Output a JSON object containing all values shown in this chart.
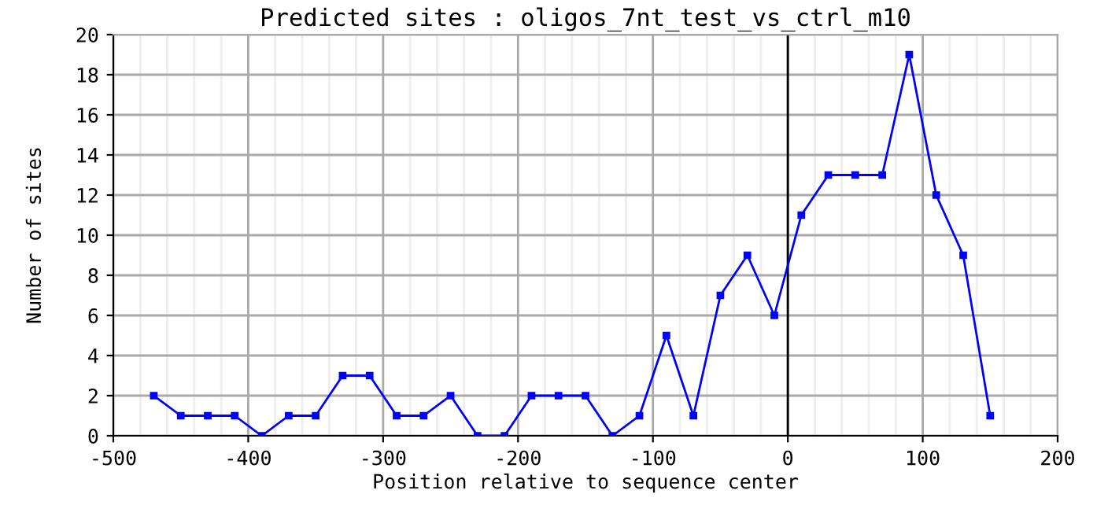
{
  "chart_data": {
    "type": "line",
    "title": "Predicted sites : oligos_7nt_test_vs_ctrl_m10",
    "xlabel": "Position relative to sequence center",
    "ylabel": "Number of sites",
    "x": [
      -470,
      -450,
      -430,
      -410,
      -390,
      -370,
      -350,
      -330,
      -310,
      -290,
      -270,
      -250,
      -230,
      -210,
      -190,
      -170,
      -150,
      -130,
      -110,
      -90,
      -70,
      -50,
      -30,
      -10,
      10,
      30,
      50,
      70,
      90,
      110,
      130,
      150
    ],
    "series": [
      {
        "color": "#0000ff",
        "values": [
          2,
          1,
          1,
          1,
          0,
          1,
          1,
          3,
          3,
          1,
          1,
          2,
          0,
          0,
          2,
          2,
          2,
          0,
          1,
          5,
          1,
          7,
          9,
          6,
          11,
          13,
          13,
          13,
          19,
          12,
          9,
          1
        ]
      }
    ],
    "xlim": [
      -500,
      200
    ],
    "ylim": [
      0,
      20
    ],
    "xticks": [
      -500,
      {
        "value": -480,
        "label": null
      },
      {
        "value": -460,
        "label": null
      },
      {
        "value": -440,
        "label": null
      },
      {
        "value": -420,
        "label": null
      },
      -400,
      {
        "value": -380,
        "label": null
      },
      {
        "value": -360,
        "label": null
      },
      {
        "value": -340,
        "label": null
      },
      {
        "value": -320,
        "label": null
      },
      -300,
      {
        "value": -280,
        "label": null
      },
      {
        "value": -260,
        "label": null
      },
      {
        "value": -240,
        "label": null
      },
      {
        "value": -220,
        "label": null
      },
      -200,
      {
        "value": -180,
        "label": null
      },
      {
        "value": -160,
        "label": null
      },
      {
        "value": -140,
        "label": null
      },
      {
        "value": -120,
        "label": null
      },
      -100,
      {
        "value": -80,
        "label": null
      },
      {
        "value": -60,
        "label": null
      },
      {
        "value": -40,
        "label": null
      },
      {
        "value": -20,
        "label": null
      },
      0,
      {
        "value": 20,
        "label": null
      },
      {
        "value": 40,
        "label": null
      },
      {
        "value": 60,
        "label": null
      },
      {
        "value": 80,
        "label": null
      },
      100,
      {
        "value": 120,
        "label": null
      },
      {
        "value": 140,
        "label": null
      },
      {
        "value": 160,
        "label": null
      },
      {
        "value": 180,
        "label": null
      },
      200
    ],
    "yticks": [
      0,
      2,
      4,
      6,
      8,
      10,
      12,
      14,
      16,
      18,
      20
    ],
    "ref_lines": [
      {
        "axis": "x",
        "value": 0,
        "color": "#000000"
      }
    ],
    "grid": true,
    "marker": "square",
    "line_style": "solid",
    "legend": false
  }
}
